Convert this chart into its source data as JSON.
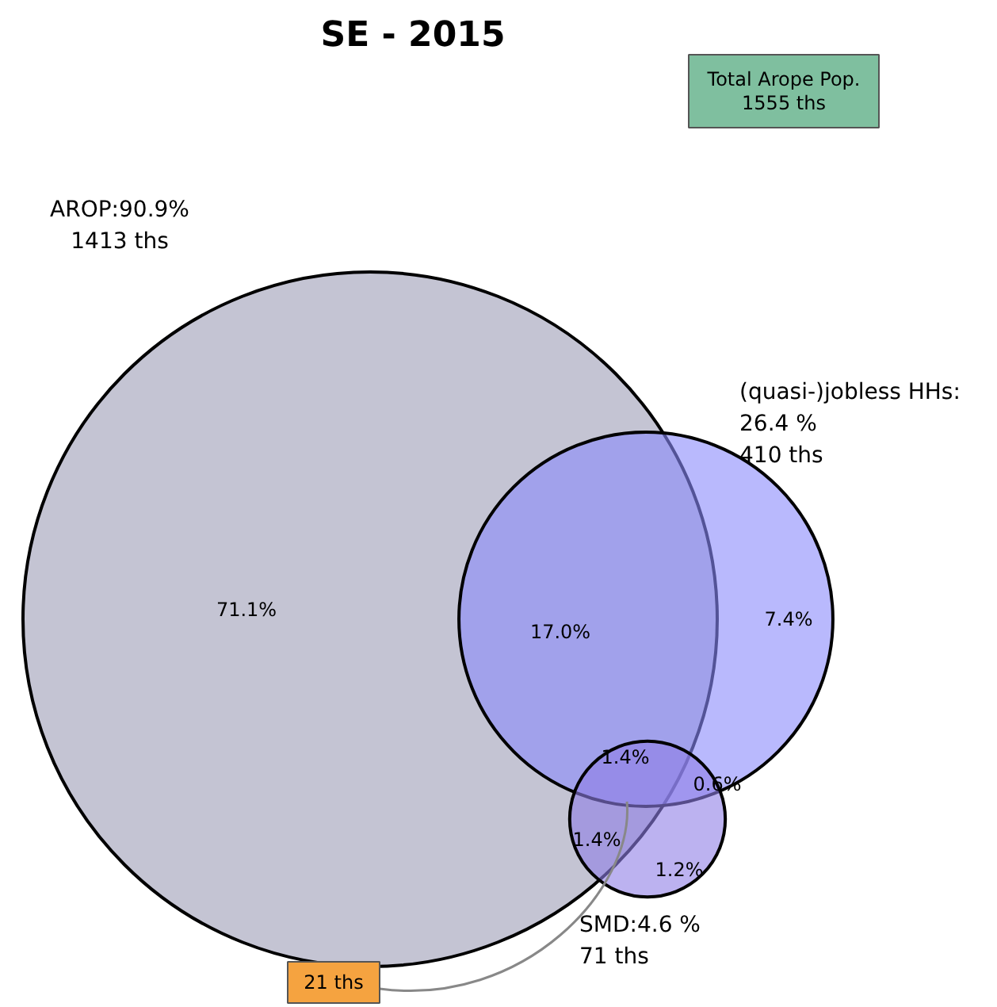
{
  "chart_data": {
    "type": "other",
    "title": "SE - 2015",
    "categories": [
      "AROP:90.9%",
      "(quasi-)jobless HHs:\n26.4 %",
      "SMD:4.6 %"
    ],
    "values": [
      1413,
      410,
      71
    ],
    "value_labels": [
      "1413 ths",
      "410 ths",
      "71 ths"
    ],
    "colors": [
      "#9d9cb6",
      "#8b8bfb",
      "#8f7fe6"
    ],
    "annotations": [
      "71.1%",
      "17.0%",
      "7.4%",
      "1.4%",
      "0.6%",
      "1.4%",
      "1.2%",
      "Total Arope Pop.\n1555 ths",
      "21 ths"
    ]
  }
}
